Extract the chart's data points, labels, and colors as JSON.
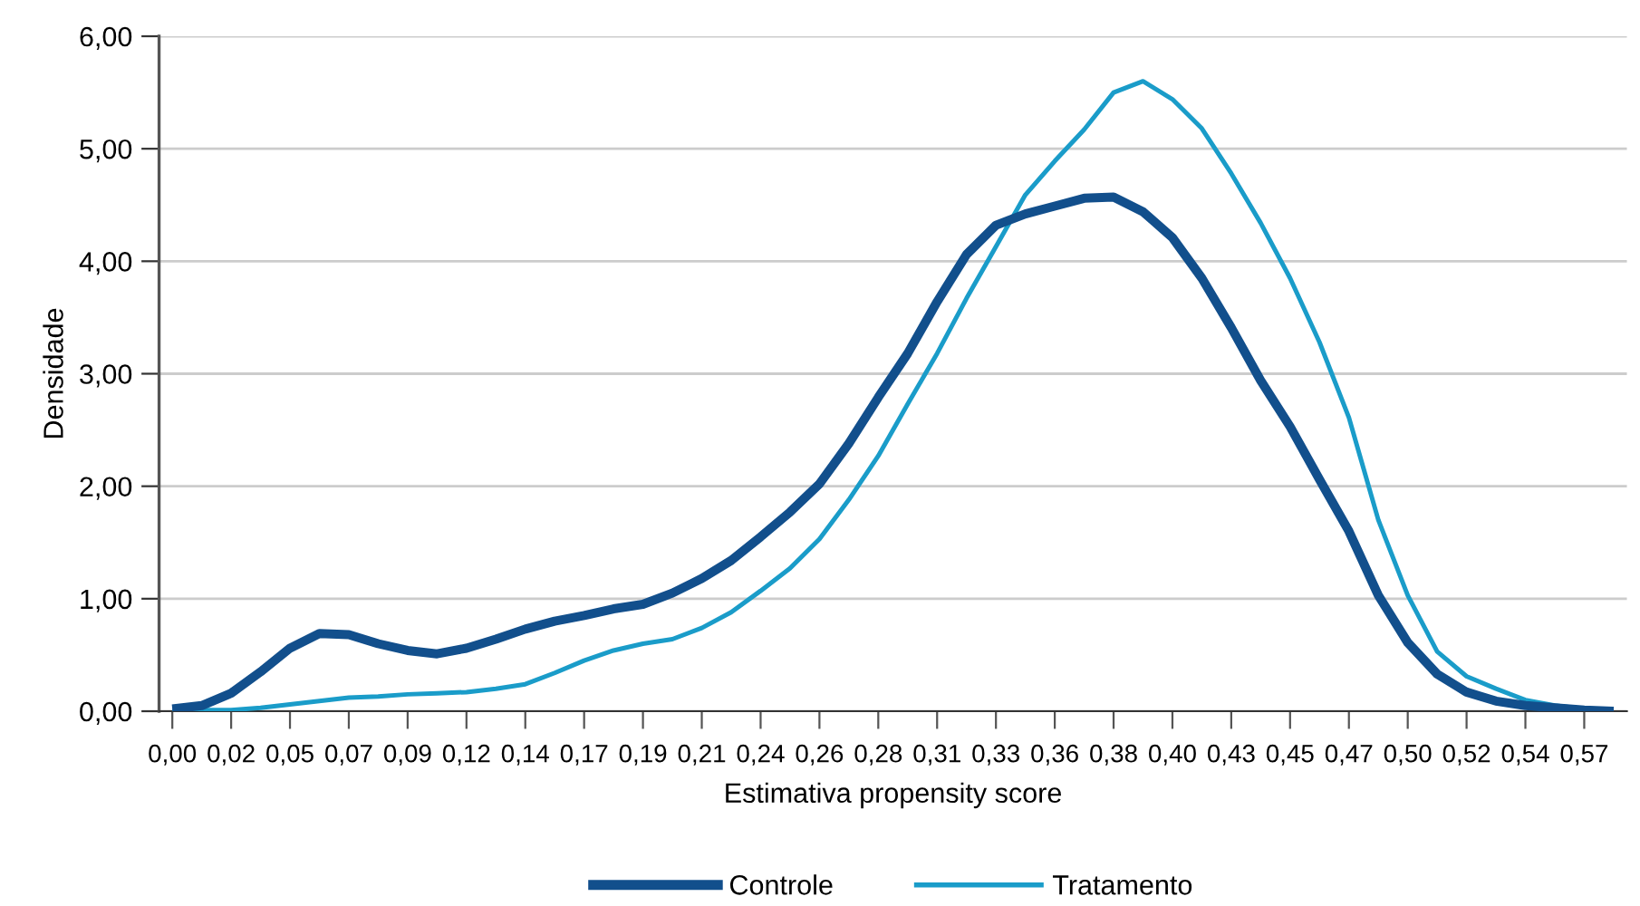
{
  "chart_data": {
    "type": "line",
    "xlabel": "Estimativa propensity score",
    "ylabel": "Densidade",
    "categories": [
      "0,00",
      null,
      "0,02",
      null,
      "0,05",
      null,
      "0,07",
      null,
      "0,09",
      null,
      "0,12",
      null,
      "0,14",
      null,
      "0,17",
      null,
      "0,19",
      null,
      "0,21",
      null,
      "0,24",
      null,
      "0,26",
      null,
      "0,28",
      null,
      "0,31",
      null,
      "0,33",
      null,
      "0,36",
      null,
      "0,38",
      null,
      "0,40",
      null,
      "0,43",
      null,
      "0,45",
      null,
      "0,47",
      null,
      "0,50",
      null,
      "0,52",
      null,
      "0,54",
      null,
      "0,57",
      null
    ],
    "series": [
      {
        "name": "Controle",
        "color": "#124f8c",
        "values": [
          0.02,
          0.05,
          0.16,
          0.35,
          0.56,
          0.69,
          0.68,
          0.6,
          0.54,
          0.51,
          0.56,
          0.64,
          0.73,
          0.8,
          0.85,
          0.91,
          0.95,
          1.05,
          1.18,
          1.34,
          1.55,
          1.77,
          2.02,
          2.38,
          2.79,
          3.18,
          3.64,
          4.06,
          4.32,
          4.42,
          4.49,
          4.56,
          4.57,
          4.44,
          4.21,
          3.85,
          3.41,
          2.94,
          2.53,
          2.06,
          1.6,
          1.03,
          0.61,
          0.33,
          0.17,
          0.09,
          0.05,
          0.03,
          0.01,
          0.0
        ]
      },
      {
        "name": "Tratamento",
        "color": "#1a9cc9",
        "values": [
          0.0,
          0.01,
          0.01,
          0.03,
          0.06,
          0.09,
          0.12,
          0.13,
          0.15,
          0.16,
          0.17,
          0.2,
          0.24,
          0.34,
          0.45,
          0.54,
          0.6,
          0.64,
          0.74,
          0.88,
          1.07,
          1.27,
          1.53,
          1.88,
          2.27,
          2.73,
          3.18,
          3.67,
          4.13,
          4.59,
          4.89,
          5.17,
          5.5,
          5.6,
          5.44,
          5.18,
          4.78,
          4.34,
          3.85,
          3.28,
          2.61,
          1.7,
          1.03,
          0.53,
          0.31,
          0.2,
          0.1,
          0.05,
          0.02,
          0.01
        ]
      }
    ],
    "ylim": [
      0,
      6
    ],
    "yticks": [
      {
        "value": 0,
        "label": "0,00"
      },
      {
        "value": 1,
        "label": "1,00"
      },
      {
        "value": 2,
        "label": "2,00"
      },
      {
        "value": 3,
        "label": "3,00"
      },
      {
        "value": 4,
        "label": "4,00"
      },
      {
        "value": 5,
        "label": "5,00"
      },
      {
        "value": 6,
        "label": "6,00"
      }
    ],
    "grid": "y",
    "legend": "bottom",
    "marker": "none",
    "line_style": "solid"
  }
}
